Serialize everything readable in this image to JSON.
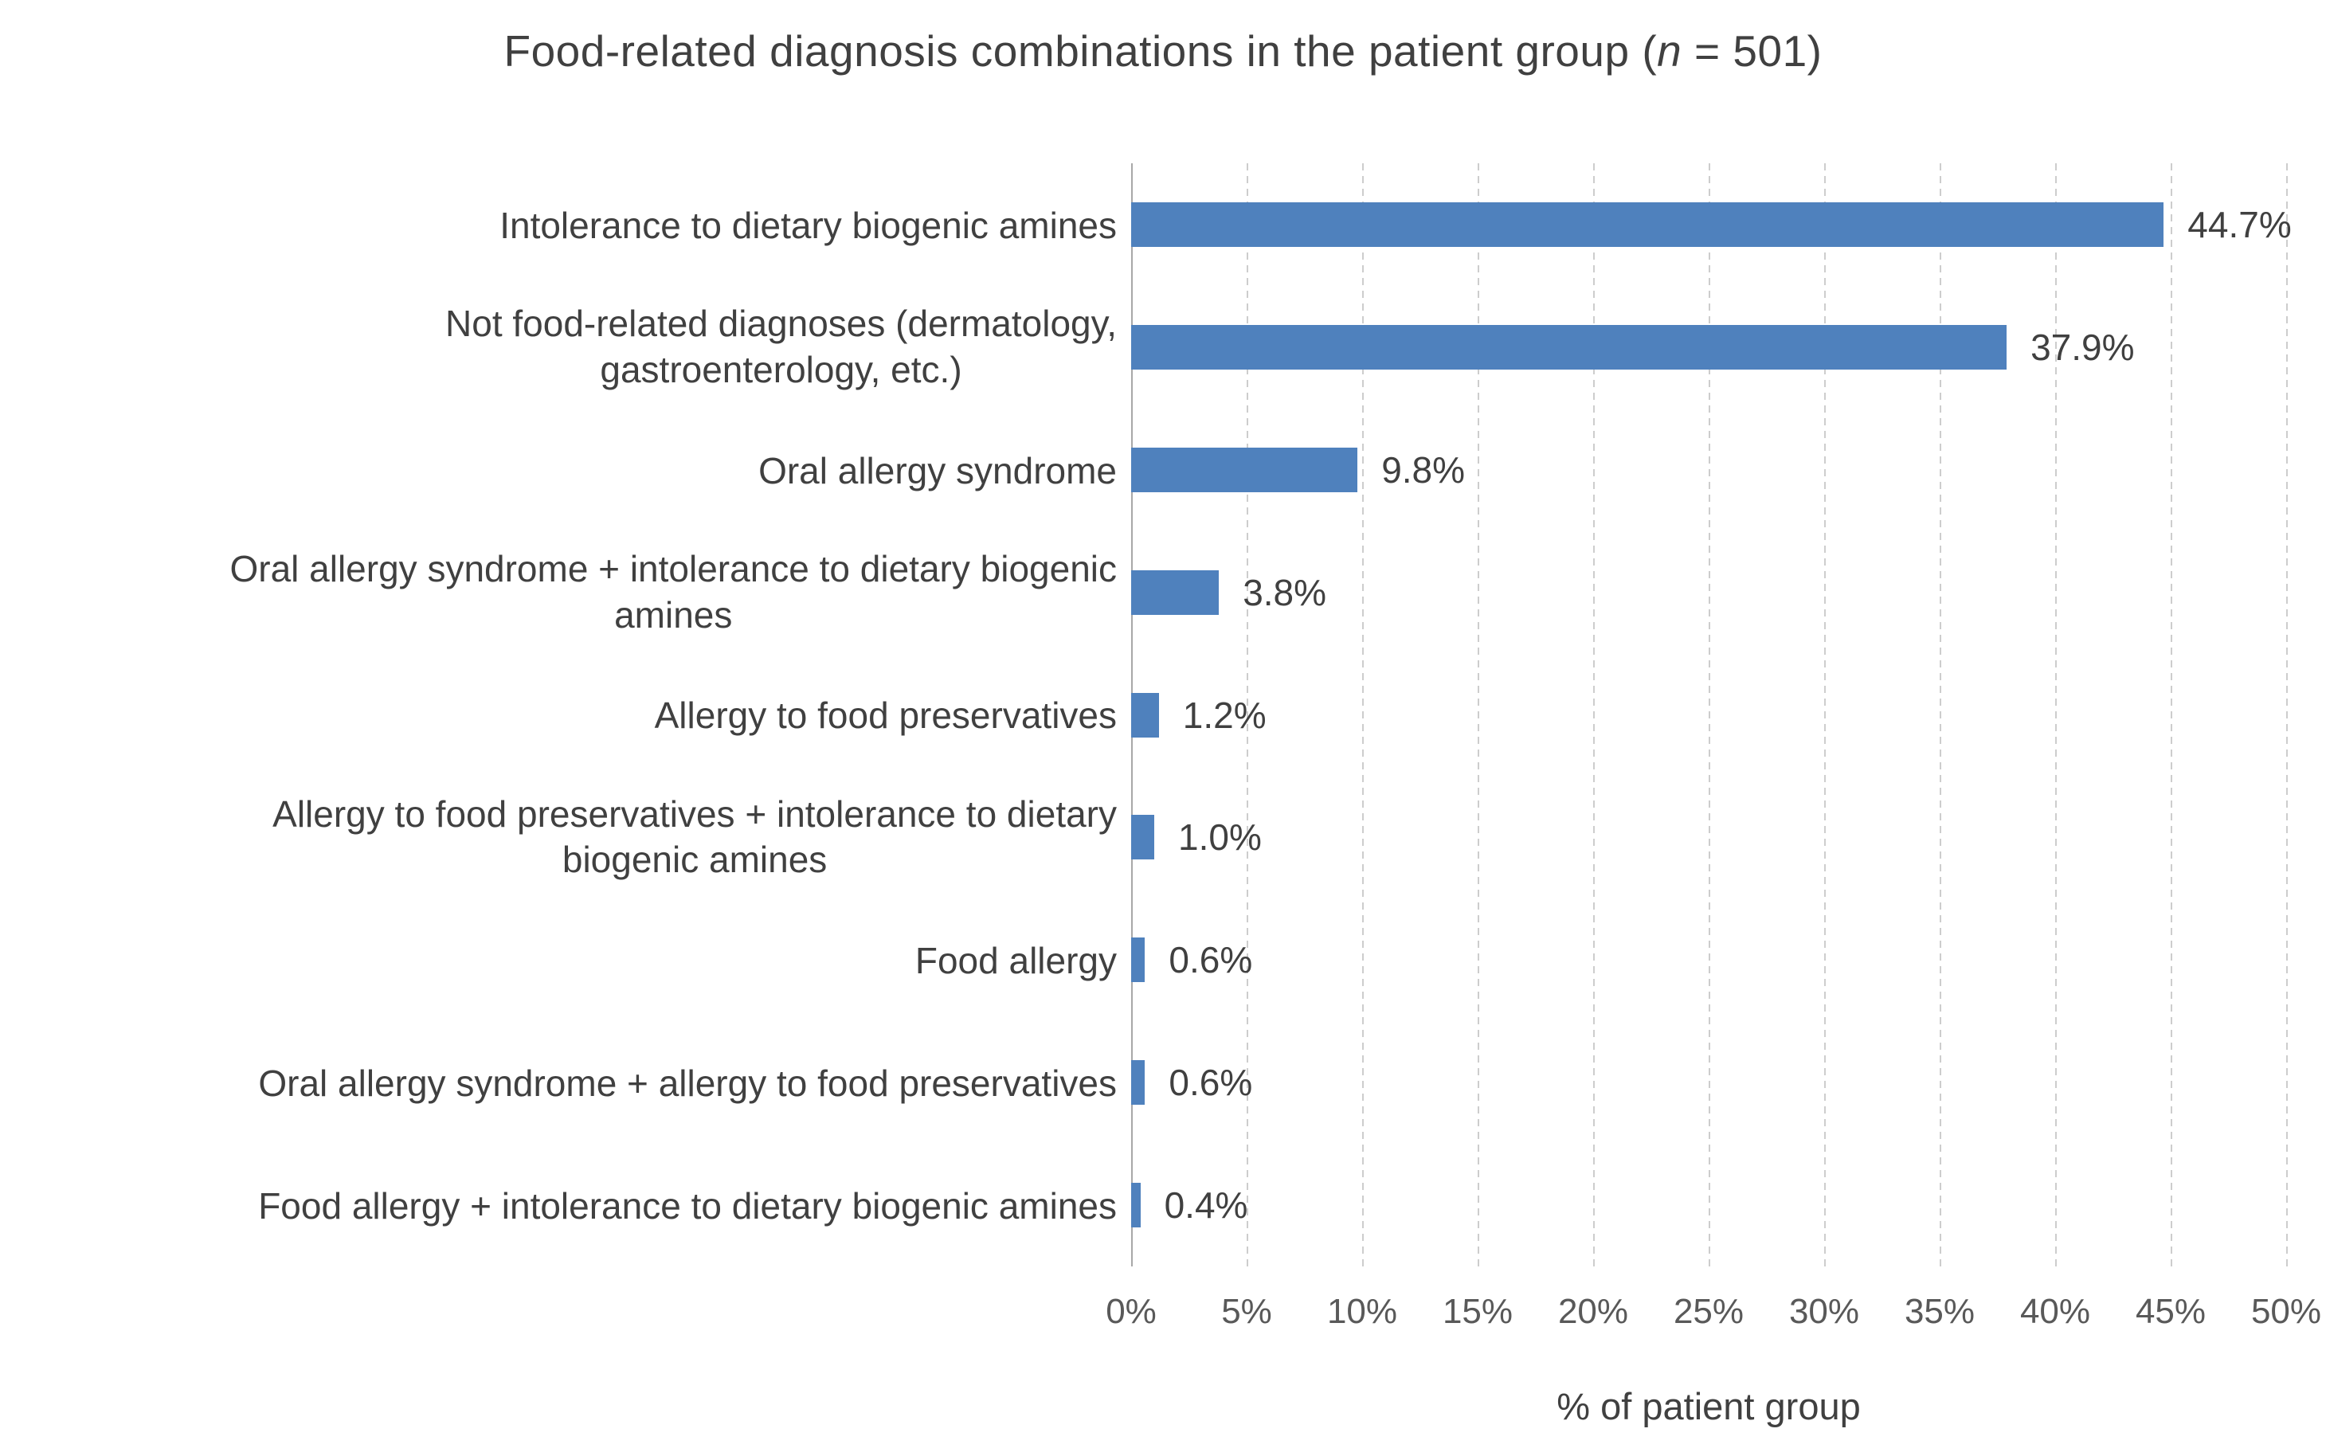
{
  "chart_data": {
    "type": "bar",
    "orientation": "horizontal",
    "title_full": "Food-related diagnosis combinations in the patient group (n = 501)",
    "title_parts": [
      "Food-related diagnosis combinations in the patient group (",
      "n",
      " = 501)"
    ],
    "categories": [
      "Intolerance to dietary biogenic amines",
      "Not food-related diagnoses (dermatology, gastroenterology, etc.)",
      "Oral allergy syndrome",
      "Oral allergy syndrome + intolerance to dietary biogenic amines",
      "Allergy to food preservatives",
      "Allergy to food preservatives + intolerance to dietary biogenic amines",
      "Food allergy",
      "Oral allergy syndrome + allergy to food preservatives",
      "Food allergy + intolerance to dietary biogenic amines"
    ],
    "categories_wrapped": [
      [
        "Intolerance to dietary biogenic amines"
      ],
      [
        "Not food-related diagnoses (dermatology,",
        "gastroenterology, etc.)"
      ],
      [
        "Oral allergy syndrome"
      ],
      [
        "Oral allergy syndrome + intolerance to dietary biogenic",
        "amines"
      ],
      [
        "Allergy to food preservatives"
      ],
      [
        "Allergy to food preservatives + intolerance to dietary",
        "biogenic amines"
      ],
      [
        "Food allergy"
      ],
      [
        "Oral allergy syndrome + allergy to food preservatives"
      ],
      [
        "Food allergy + intolerance to dietary biogenic amines"
      ]
    ],
    "values": [
      44.7,
      37.9,
      9.8,
      3.8,
      1.2,
      1.0,
      0.6,
      0.6,
      0.4
    ],
    "value_labels": [
      "44.7%",
      "37.9%",
      "9.8%",
      "3.8%",
      "1.2%",
      "1.0%",
      "0.6%",
      "0.6%",
      "0.4%"
    ],
    "xlabel": "% of patient group",
    "x_ticks": [
      "0%",
      "5%",
      "10%",
      "15%",
      "20%",
      "25%",
      "30%",
      "35%",
      "40%",
      "45%",
      "50%"
    ],
    "xlim": [
      0,
      50
    ],
    "grid": true,
    "legend": false,
    "colors": {
      "bar": "#4F81BD",
      "title_text": "#404040",
      "label_text": "#404040",
      "tick_text": "#595959",
      "gridline": "#cdcdcd",
      "axis_line": "#a8a8a8"
    }
  }
}
